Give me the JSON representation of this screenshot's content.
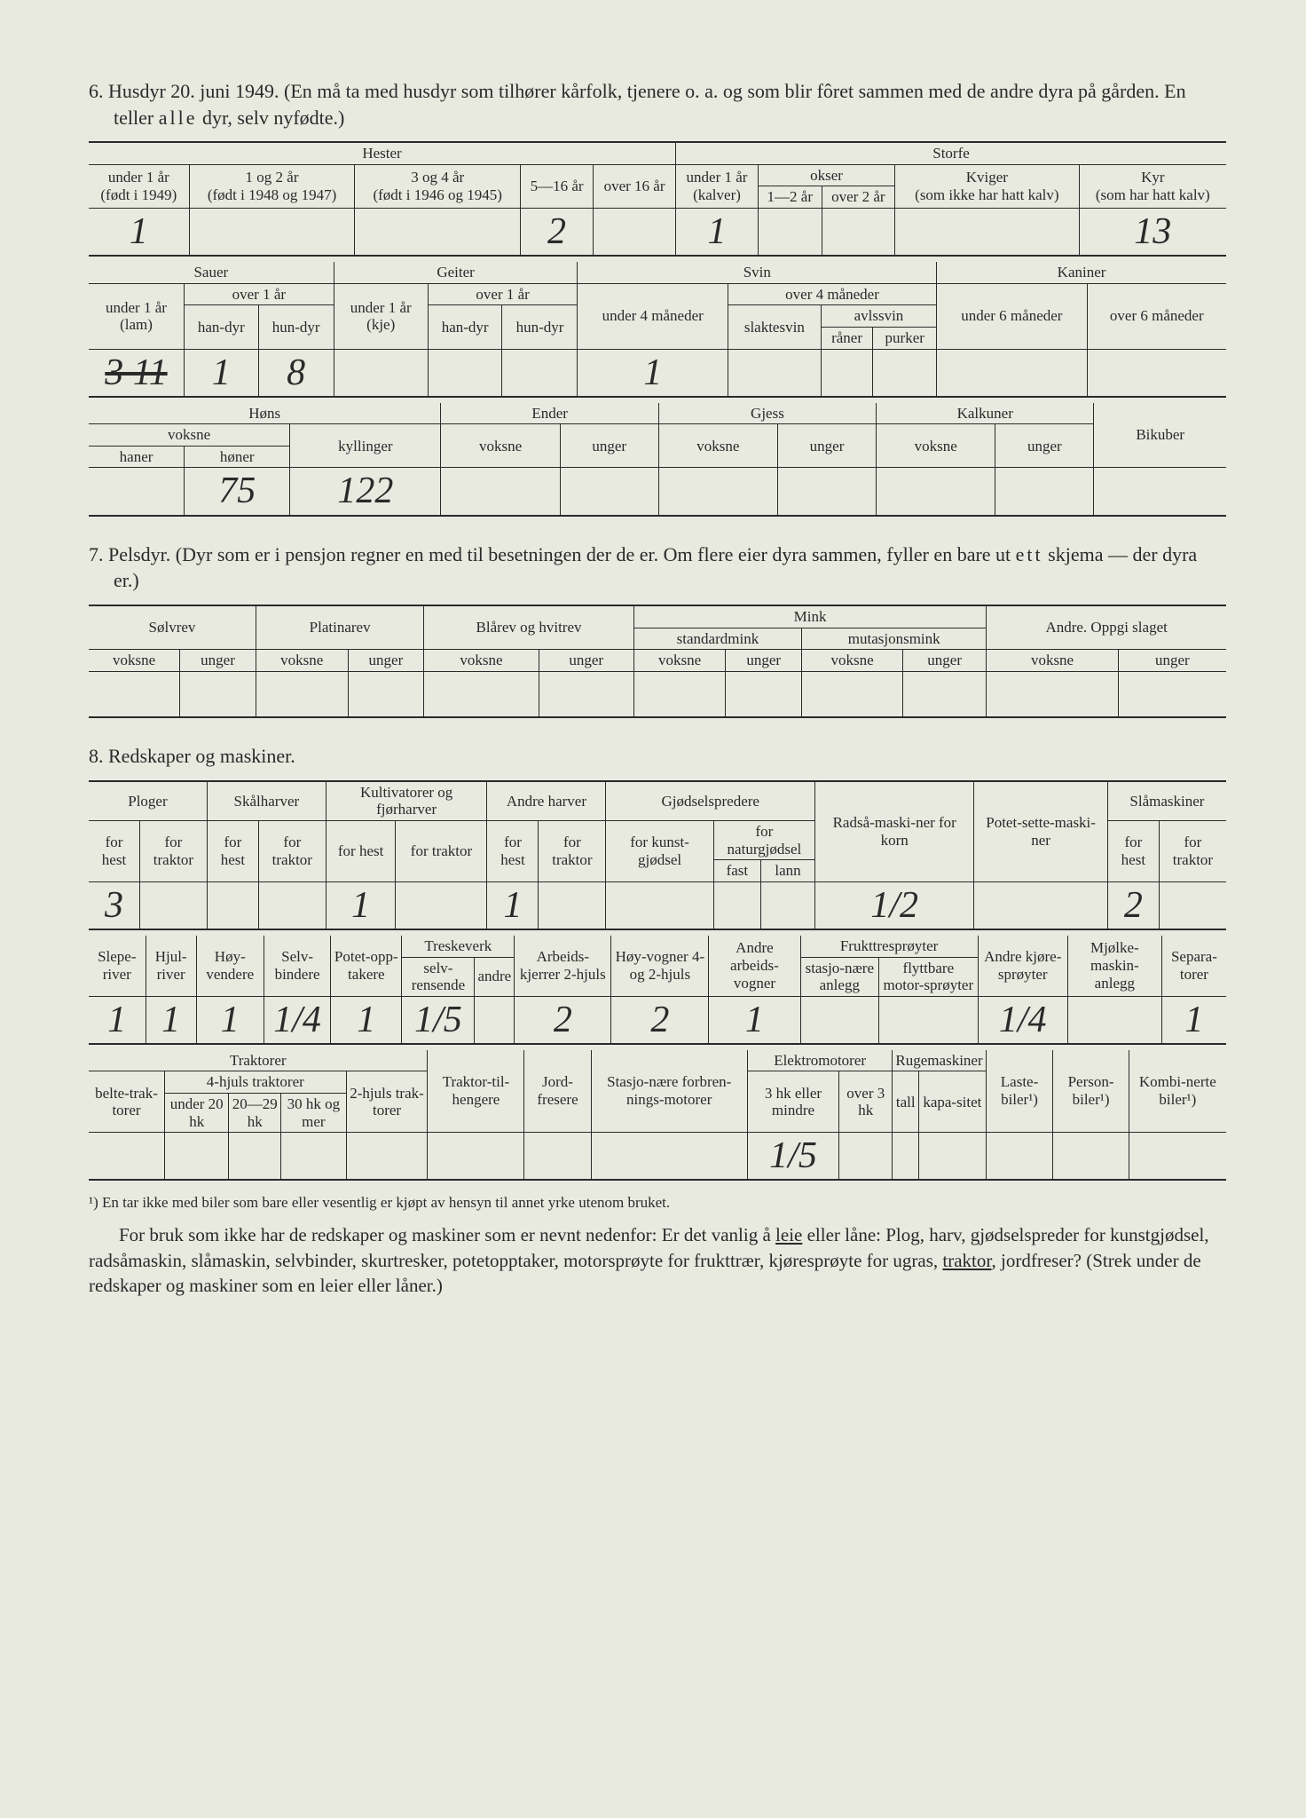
{
  "section6": {
    "title": "6. Husdyr 20. juni 1949. (En må ta med husdyr som tilhører kårfolk, tjenere o. a. og som blir fôret sammen med de andre dyra på gården. En teller alle dyr, selv nyfødte.)",
    "hester_label": "Hester",
    "storfe_label": "Storfe",
    "hester_cols": {
      "c1a": "under 1 år",
      "c1b": "(født i 1949)",
      "c2a": "1 og 2 år",
      "c2b": "(født i 1948 og 1947)",
      "c3a": "3 og 4 år",
      "c3b": "(født i 1946 og 1945)",
      "c4": "5—16 år",
      "c5": "over 16 år"
    },
    "storfe_cols": {
      "c1a": "under 1 år",
      "c1b": "(kalver)",
      "okser": "okser",
      "ok1": "1—2 år",
      "ok2": "over 2 år",
      "kviger_a": "Kviger",
      "kviger_b": "(som ikke har hatt kalv)",
      "kyr_a": "Kyr",
      "kyr_b": "(som har hatt kalv)"
    },
    "row1_values": [
      "1",
      "",
      "",
      "2",
      "",
      "1",
      "",
      "",
      "",
      "13"
    ],
    "sauer_label": "Sauer",
    "geiter_label": "Geiter",
    "svin_label": "Svin",
    "kaniner_label": "Kaniner",
    "sauer_cols": {
      "c1a": "under 1 år",
      "c1b": "(lam)",
      "over1": "over 1 år",
      "han": "han-dyr",
      "hun": "hun-dyr"
    },
    "geiter_cols": {
      "c1a": "under 1 år",
      "c1b": "(kje)",
      "over1": "over 1 år",
      "han": "han-dyr",
      "hun": "hun-dyr"
    },
    "svin_cols": {
      "under4": "under 4 måneder",
      "over4": "over 4 måneder",
      "slaktesvin": "slaktesvin",
      "avlssvin": "avlssvin",
      "raner": "råner",
      "purker": "purker"
    },
    "kaniner_cols": {
      "under6": "under 6 måneder",
      "over6": "over 6 måneder"
    },
    "row2_strike": "3 11",
    "row2_values": [
      "1",
      "8",
      "",
      "",
      "",
      "1",
      "",
      "",
      "",
      "",
      ""
    ],
    "hons_label": "Høns",
    "ender_label": "Ender",
    "gjess_label": "Gjess",
    "kalkuner_label": "Kalkuner",
    "bikuber_label": "Bikuber",
    "hons_cols": {
      "voksne": "voksne",
      "haner": "haner",
      "honer": "høner",
      "kyllinger": "kyllinger"
    },
    "vu_voksne": "voksne",
    "vu_unger": "unger",
    "row3_values": [
      "",
      "75",
      "122",
      "",
      "",
      "",
      "",
      "",
      "",
      ""
    ]
  },
  "section7": {
    "title": "7. Pelsdyr. (Dyr som er i pensjon regner en med til besetningen der de er. Om flere eier dyra sammen, fyller en bare ut ett skjema — der dyra er.)",
    "solvrev": "Sølvrev",
    "platinarev": "Platinarev",
    "blarev": "Blårev og hvitrev",
    "mink": "Mink",
    "standardmink": "standardmink",
    "mutasjonsmink": "mutasjonsmink",
    "andre": "Andre. Oppgi slaget",
    "voksne": "voksne",
    "unger": "unger"
  },
  "section8": {
    "title": "8. Redskaper og maskiner.",
    "ploger": "Ploger",
    "skalharver": "Skålharver",
    "kultivatorer": "Kultivatorer og fjørharver",
    "andre_harver": "Andre harver",
    "gjodselspredere": "Gjødselspredere",
    "radsamaskiner": "Radså-maski-ner for korn",
    "potetsette": "Potet-sette-maski-ner",
    "slamaskiner": "Slåmaskiner",
    "for_hest": "for hest",
    "for_traktor": "for traktor",
    "for_kunst": "for kunst-gjødsel",
    "for_natur": "for naturgjødsel",
    "fast": "fast",
    "lann": "lann",
    "row1_values": [
      "3",
      "",
      "",
      "",
      "1",
      "",
      "1",
      "",
      "",
      "",
      "",
      "1/2",
      "",
      "2",
      ""
    ],
    "sleperiver": "Slepe-river",
    "hjulriver": "Hjul-river",
    "hoyvendere": "Høy-vendere",
    "selvbindere": "Selv-bindere",
    "potetopptakere": "Potet-opp-takere",
    "treskeverk": "Treskeverk",
    "selvrensende": "selv-rensende",
    "andre": "andre",
    "arbeidskjerrer": "Arbeids-kjerrer 2-hjuls",
    "hoyvogner": "Høy-vogner 4- og 2-hjuls",
    "andre_arbeidsvogner": "Andre arbeids-vogner",
    "frukttresproyter": "Frukttresprøyter",
    "stasjonaere": "stasjo-nære anlegg",
    "flyttbare": "flyttbare motor-sprøyter",
    "andre_kjoresproyter": "Andre kjøre-sprøyter",
    "mjolkemaskin": "Mjølke-maskin-anlegg",
    "separatorer": "Separa-torer",
    "row2_values": [
      "1",
      "1",
      "1",
      "1/4",
      "1",
      "1/5",
      "",
      "2",
      "2",
      "1",
      "",
      "",
      "1/4",
      "",
      "1"
    ],
    "traktorer": "Traktorer",
    "belte": "belte-trak-torer",
    "fourhjuls": "4-hjuls traktorer",
    "under20": "under 20 hk",
    "hk2029": "20—29 hk",
    "hk30": "30 hk og mer",
    "twohjuls": "2-hjuls trak-torer",
    "traktortilhengere": "Traktor-til-hengere",
    "jordfresere": "Jord-fresere",
    "stasj_forbrenning": "Stasjo-nære forbren-nings-motorer",
    "elektromotorer": "Elektromotorer",
    "3hk_mindre": "3 hk eller mindre",
    "over3hk": "over 3 hk",
    "rugemaskiner": "Rugemaskiner",
    "tall": "tall",
    "kapasitet": "kapa-sitet",
    "lastebiler": "Laste-biler¹)",
    "personbiler": "Person-biler¹)",
    "kombinerte": "Kombi-nerte biler¹)",
    "row3_values": [
      "",
      "",
      "",
      "",
      "",
      "",
      "",
      "",
      "1/5",
      "",
      "",
      "",
      "",
      "",
      ""
    ]
  },
  "footnote": "¹) En tar ikke med biler som bare eller vesentlig er kjøpt av hensyn til annet yrke utenom bruket.",
  "paragraph": "For bruk som ikke har de redskaper og maskiner som er nevnt nedenfor: Er det vanlig å leie eller låne: Plog, harv, gjødselspreder for kunstgjødsel, radsåmaskin, slåmaskin, selvbinder, skurtresker, potetopptaker, motorsprøyte for frukttrær, kjøresprøyte for ugras, traktor, jordfreser? (Strek under de redskaper og maskiner som en leier eller låner.)"
}
